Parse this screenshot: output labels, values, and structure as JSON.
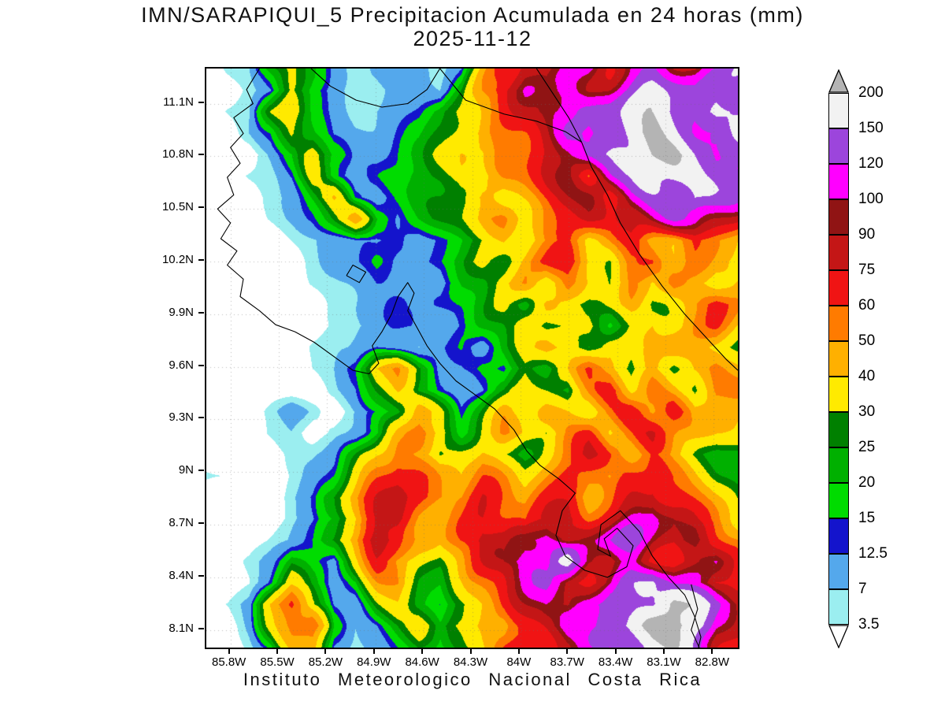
{
  "title": {
    "line1": "IMN/SARAPIQUI_5 Precipitacion Acumulada en 24 horas (mm)",
    "line2": "2025-11-12"
  },
  "caption": "Instituto Meteorologico Nacional Costa Rica",
  "colorbar": {
    "labels": [
      "200",
      "150",
      "120",
      "100",
      "90",
      "75",
      "60",
      "50",
      "40",
      "30",
      "25",
      "20",
      "15",
      "12.5",
      "7",
      "3.5"
    ],
    "above_max_color": "#b4b4b4",
    "below_min_color": "#ffffff"
  },
  "chart_data": {
    "type": "heatmap",
    "title": "IMN/SARAPIQUI_5 Precipitacion Acumulada en 24 horas (mm)",
    "subtitle": "2025-11-12",
    "units": "mm",
    "legend_position": "right",
    "grid_lines": "dotted",
    "extent": {
      "lon_west": 85.95,
      "lon_east": 82.65,
      "lat_south": 8.0,
      "lat_north": 11.3
    },
    "axes": {
      "x_ticks": [
        {
          "value": 85.8,
          "label": "85.8W"
        },
        {
          "value": 85.5,
          "label": "85.5W"
        },
        {
          "value": 85.2,
          "label": "85.2W"
        },
        {
          "value": 84.9,
          "label": "84.9W"
        },
        {
          "value": 84.6,
          "label": "84.6W"
        },
        {
          "value": 84.3,
          "label": "84.3W"
        },
        {
          "value": 84.0,
          "label": "84W"
        },
        {
          "value": 83.7,
          "label": "83.7W"
        },
        {
          "value": 83.4,
          "label": "83.4W"
        },
        {
          "value": 83.1,
          "label": "83.1W"
        },
        {
          "value": 82.8,
          "label": "82.8W"
        }
      ],
      "y_ticks": [
        {
          "value": 11.1,
          "label": "11.1N"
        },
        {
          "value": 10.8,
          "label": "10.8N"
        },
        {
          "value": 10.5,
          "label": "10.5N"
        },
        {
          "value": 10.2,
          "label": "10.2N"
        },
        {
          "value": 9.9,
          "label": "9.9N"
        },
        {
          "value": 9.6,
          "label": "9.6N"
        },
        {
          "value": 9.3,
          "label": "9.3N"
        },
        {
          "value": 9.0,
          "label": "9N"
        },
        {
          "value": 8.7,
          "label": "8.7N"
        },
        {
          "value": 8.4,
          "label": "8.4N"
        },
        {
          "value": 8.1,
          "label": "8.1N"
        }
      ]
    },
    "levels": [
      3.5,
      7,
      12.5,
      15,
      20,
      25,
      30,
      40,
      50,
      60,
      75,
      90,
      100,
      120,
      150,
      200
    ],
    "band_colors": [
      "#9beef0",
      "#54a8ec",
      "#1414cc",
      "#00dc00",
      "#00b000",
      "#008000",
      "#ffea00",
      "#ffb000",
      "#ff7b00",
      "#f01414",
      "#c41616",
      "#901414",
      "#ff00ff",
      "#9c45dc",
      "#f2f2f2"
    ],
    "above_max_color": "#b4b4b4",
    "below_min_color": "#ffffff",
    "grid": [
      [
        0,
        4,
        6,
        25,
        40,
        22,
        9,
        5,
        8,
        10,
        8,
        6,
        15,
        45,
        70,
        90,
        75,
        90,
        105,
        85,
        110,
        130,
        110,
        95,
        110,
        130
      ],
      [
        0,
        0,
        5,
        12,
        32,
        16,
        8,
        5,
        5,
        9,
        11,
        8,
        25,
        55,
        80,
        95,
        85,
        110,
        90,
        100,
        125,
        160,
        140,
        115,
        125,
        140
      ],
      [
        0,
        4,
        6,
        28,
        42,
        20,
        10,
        6,
        8,
        10,
        13,
        22,
        35,
        50,
        65,
        85,
        105,
        95,
        115,
        135,
        165,
        175,
        150,
        135,
        160,
        140
      ],
      [
        0,
        0,
        6,
        14,
        36,
        26,
        12,
        8,
        8,
        12,
        16,
        26,
        38,
        48,
        58,
        72,
        92,
        115,
        95,
        140,
        180,
        220,
        185,
        145,
        125,
        135
      ],
      [
        4,
        0,
        0,
        8,
        20,
        40,
        20,
        10,
        10,
        15,
        20,
        30,
        42,
        36,
        52,
        66,
        82,
        96,
        120,
        145,
        185,
        230,
        230,
        170,
        130,
        120
      ],
      [
        0,
        0,
        4,
        6,
        15,
        35,
        18,
        10,
        13,
        16,
        22,
        28,
        38,
        30,
        46,
        56,
        72,
        86,
        62,
        122,
        150,
        205,
        185,
        160,
        135,
        120
      ],
      [
        0,
        0,
        0,
        5,
        10,
        25,
        40,
        15,
        10,
        14,
        20,
        26,
        35,
        45,
        35,
        50,
        62,
        76,
        86,
        70,
        120,
        140,
        160,
        180,
        140,
        110
      ],
      [
        0,
        0,
        0,
        4,
        8,
        15,
        30,
        45,
        20,
        12,
        18,
        24,
        30,
        40,
        50,
        40,
        56,
        66,
        80,
        65,
        90,
        110,
        130,
        120,
        100,
        80
      ],
      [
        0,
        0,
        0,
        0,
        4,
        6,
        9,
        12,
        10,
        13,
        10,
        14,
        20,
        26,
        38,
        30,
        45,
        60,
        40,
        55,
        70,
        55,
        45,
        60,
        50,
        40
      ],
      [
        0,
        0,
        0,
        0,
        0,
        5,
        8,
        12,
        14,
        10,
        13,
        18,
        24,
        30,
        26,
        40,
        55,
        70,
        45,
        35,
        55,
        65,
        45,
        50,
        40,
        35
      ],
      [
        0,
        0,
        0,
        0,
        0,
        4,
        6,
        9,
        13,
        11,
        14,
        10,
        20,
        26,
        35,
        45,
        30,
        55,
        40,
        30,
        45,
        35,
        55,
        40,
        30,
        45
      ],
      [
        0,
        0,
        0,
        0,
        0,
        0,
        5,
        8,
        10,
        13,
        10,
        14,
        18,
        24,
        30,
        22,
        40,
        30,
        25,
        35,
        45,
        30,
        40,
        50,
        65,
        50
      ],
      [
        0,
        0,
        0,
        0,
        0,
        0,
        4,
        6,
        9,
        12,
        14,
        10,
        13,
        20,
        26,
        35,
        22,
        30,
        40,
        22,
        30,
        42,
        35,
        45,
        55,
        40
      ],
      [
        0,
        0,
        0,
        0,
        0,
        4,
        6,
        9,
        13,
        10,
        8,
        12,
        15,
        10,
        22,
        30,
        45,
        35,
        25,
        35,
        28,
        38,
        50,
        40,
        35,
        30
      ],
      [
        0,
        0,
        0,
        0,
        0,
        4,
        7,
        18,
        45,
        50,
        25,
        10,
        14,
        20,
        13,
        30,
        22,
        35,
        55,
        45,
        25,
        40,
        30,
        45,
        55,
        40
      ],
      [
        0,
        0,
        0,
        0,
        0,
        0,
        6,
        12,
        30,
        42,
        20,
        12,
        9,
        13,
        25,
        45,
        35,
        22,
        45,
        65,
        40,
        55,
        45,
        35,
        60,
        50
      ],
      [
        0,
        0,
        0,
        5,
        12,
        6,
        0,
        8,
        15,
        25,
        45,
        30,
        13,
        25,
        40,
        30,
        50,
        40,
        30,
        50,
        70,
        55,
        70,
        45,
        55,
        45
      ],
      [
        0,
        0,
        0,
        4,
        8,
        0,
        5,
        10,
        20,
        40,
        55,
        35,
        20,
        35,
        50,
        40,
        30,
        45,
        60,
        40,
        55,
        75,
        60,
        50,
        40,
        35
      ],
      [
        0,
        0,
        0,
        0,
        5,
        8,
        12,
        25,
        45,
        55,
        40,
        25,
        35,
        45,
        30,
        25,
        40,
        55,
        70,
        55,
        45,
        60,
        45,
        35,
        25,
        20
      ],
      [
        5,
        4,
        0,
        0,
        4,
        10,
        18,
        35,
        55,
        70,
        60,
        45,
        40,
        55,
        45,
        35,
        50,
        65,
        55,
        45,
        65,
        80,
        60,
        45,
        30,
        22
      ],
      [
        0,
        0,
        0,
        0,
        6,
        12,
        25,
        45,
        65,
        80,
        70,
        55,
        50,
        65,
        55,
        45,
        60,
        70,
        50,
        60,
        80,
        95,
        70,
        55,
        40,
        30
      ],
      [
        0,
        0,
        0,
        0,
        5,
        10,
        20,
        40,
        70,
        90,
        60,
        45,
        55,
        70,
        60,
        50,
        70,
        90,
        65,
        75,
        95,
        110,
        85,
        65,
        50,
        40
      ],
      [
        0,
        0,
        0,
        4,
        8,
        15,
        30,
        55,
        85,
        70,
        50,
        40,
        60,
        80,
        70,
        90,
        110,
        80,
        95,
        110,
        130,
        100,
        80,
        95,
        70,
        55
      ],
      [
        0,
        0,
        5,
        12,
        25,
        15,
        10,
        35,
        60,
        45,
        35,
        30,
        45,
        65,
        85,
        110,
        90,
        170,
        110,
        90,
        110,
        85,
        65,
        80,
        95,
        70
      ],
      [
        0,
        0,
        4,
        15,
        35,
        20,
        8,
        20,
        45,
        55,
        30,
        22,
        35,
        50,
        70,
        90,
        120,
        95,
        80,
        100,
        130,
        160,
        110,
        90,
        70,
        85
      ],
      [
        0,
        4,
        10,
        40,
        65,
        30,
        12,
        10,
        30,
        40,
        25,
        15,
        28,
        45,
        60,
        80,
        100,
        85,
        110,
        135,
        110,
        130,
        220,
        180,
        130,
        95
      ],
      [
        0,
        0,
        8,
        30,
        55,
        70,
        20,
        8,
        15,
        25,
        35,
        20,
        35,
        55,
        45,
        70,
        90,
        110,
        95,
        120,
        160,
        200,
        230,
        200,
        110,
        80
      ],
      [
        0,
        0,
        5,
        15,
        40,
        50,
        15,
        5,
        10,
        18,
        25,
        15,
        25,
        40,
        55,
        65,
        80,
        95,
        110,
        100,
        130,
        170,
        190,
        150,
        95,
        70
      ]
    ],
    "coastlines": [
      [
        [
          85.62,
          11.3
        ],
        [
          85.7,
          11.18
        ],
        [
          85.66,
          11.1
        ],
        [
          85.78,
          11.02
        ],
        [
          85.72,
          10.93
        ],
        [
          85.8,
          10.85
        ],
        [
          85.74,
          10.76
        ],
        [
          85.82,
          10.68
        ],
        [
          85.78,
          10.58
        ],
        [
          85.88,
          10.5
        ],
        [
          85.8,
          10.42
        ],
        [
          85.86,
          10.33
        ],
        [
          85.76,
          10.26
        ],
        [
          85.82,
          10.18
        ],
        [
          85.72,
          10.1
        ],
        [
          85.74,
          10.0
        ],
        [
          85.62,
          9.92
        ],
        [
          85.52,
          9.84
        ],
        [
          85.4,
          9.8
        ],
        [
          85.28,
          9.74
        ],
        [
          85.16,
          9.66
        ],
        [
          85.04,
          9.58
        ],
        [
          84.94,
          9.56
        ],
        [
          84.88,
          9.62
        ],
        [
          84.92,
          9.72
        ],
        [
          84.86,
          9.8
        ],
        [
          84.8,
          9.9
        ],
        [
          84.76,
          10.0
        ],
        [
          84.7,
          10.08
        ],
        [
          84.66,
          10.02
        ],
        [
          84.7,
          9.92
        ],
        [
          84.64,
          9.82
        ],
        [
          84.58,
          9.72
        ],
        [
          84.5,
          9.62
        ],
        [
          84.4,
          9.52
        ],
        [
          84.28,
          9.44
        ],
        [
          84.16,
          9.36
        ],
        [
          84.04,
          9.24
        ],
        [
          83.96,
          9.12
        ],
        [
          83.88,
          9.04
        ],
        [
          83.76,
          8.96
        ],
        [
          83.66,
          8.88
        ],
        [
          83.74,
          8.78
        ],
        [
          83.78,
          8.64
        ],
        [
          83.72,
          8.52
        ],
        [
          83.6,
          8.44
        ],
        [
          83.46,
          8.4
        ],
        [
          83.34,
          8.46
        ],
        [
          83.3,
          8.58
        ],
        [
          83.4,
          8.68
        ],
        [
          83.48,
          8.62
        ],
        [
          83.44,
          8.52
        ],
        [
          83.52,
          8.56
        ],
        [
          83.5,
          8.7
        ],
        [
          83.38,
          8.78
        ],
        [
          83.26,
          8.66
        ],
        [
          83.18,
          8.52
        ],
        [
          83.08,
          8.4
        ],
        [
          82.98,
          8.3
        ],
        [
          82.92,
          8.18
        ],
        [
          82.88,
          8.06
        ],
        [
          82.9,
          7.98
        ]
      ],
      [
        [
          83.9,
          11.3
        ],
        [
          83.8,
          11.16
        ],
        [
          83.7,
          11.02
        ],
        [
          83.62,
          10.88
        ],
        [
          83.56,
          10.74
        ],
        [
          83.46,
          10.58
        ],
        [
          83.38,
          10.42
        ],
        [
          83.26,
          10.24
        ],
        [
          83.12,
          10.06
        ],
        [
          82.98,
          9.9
        ],
        [
          82.84,
          9.76
        ],
        [
          82.72,
          9.64
        ],
        [
          82.65,
          9.58
        ]
      ],
      [
        [
          85.3,
          11.3
        ],
        [
          85.18,
          11.2
        ],
        [
          85.02,
          11.12
        ],
        [
          84.86,
          11.08
        ],
        [
          84.7,
          11.1
        ],
        [
          84.58,
          11.18
        ],
        [
          84.5,
          11.3
        ]
      ],
      [
        [
          84.5,
          11.3
        ],
        [
          84.34,
          11.12
        ],
        [
          84.1,
          11.04
        ],
        [
          83.9,
          11.0
        ],
        [
          83.72,
          10.94
        ],
        [
          83.62,
          10.88
        ]
      ],
      [
        [
          85.08,
          10.12
        ],
        [
          85.0,
          10.08
        ],
        [
          84.96,
          10.14
        ],
        [
          85.04,
          10.18
        ],
        [
          85.08,
          10.12
        ]
      ],
      [
        [
          82.94,
          8.36
        ],
        [
          82.9,
          8.22
        ],
        [
          82.94,
          8.1
        ],
        [
          82.88,
          7.98
        ]
      ]
    ]
  }
}
